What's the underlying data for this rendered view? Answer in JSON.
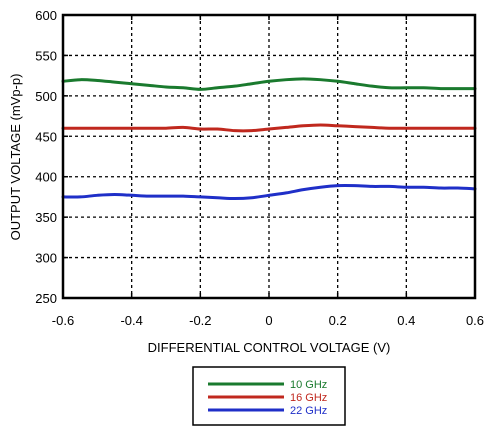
{
  "chart_data": {
    "type": "line",
    "title": "",
    "xlabel": "DIFFERENTIAL CONTROL VOLTAGE (V)",
    "ylabel": "OUTPUT VOLTAGE (mVp-p)",
    "xlim": [
      -0.6,
      0.6
    ],
    "ylim": [
      250,
      600
    ],
    "xticks": [
      -0.6,
      -0.4,
      -0.2,
      0,
      0.2,
      0.4,
      0.6
    ],
    "xtick_labels": [
      "-0.6",
      "-0.4",
      "-0.2",
      "0",
      "0.2",
      "0.4",
      "0.6"
    ],
    "yticks": [
      250,
      300,
      350,
      400,
      450,
      500,
      550,
      600
    ],
    "ytick_labels": [
      "250",
      "300",
      "350",
      "400",
      "450",
      "500",
      "550",
      "600"
    ],
    "grid": true,
    "legend_position": "bottom-center-outside",
    "series": [
      {
        "name": "10 GHz",
        "color": "#1a7a2e",
        "x": [
          -0.6,
          -0.55,
          -0.5,
          -0.45,
          -0.4,
          -0.35,
          -0.3,
          -0.25,
          -0.2,
          -0.15,
          -0.1,
          -0.05,
          0,
          0.05,
          0.1,
          0.15,
          0.2,
          0.25,
          0.3,
          0.35,
          0.4,
          0.45,
          0.5,
          0.55,
          0.6
        ],
        "values": [
          518,
          520,
          519,
          517,
          515,
          513,
          511,
          510,
          508,
          510,
          512,
          515,
          518,
          520,
          521,
          520,
          518,
          515,
          512,
          510,
          510,
          510,
          509,
          509,
          509
        ]
      },
      {
        "name": "16 GHz",
        "color": "#c0281e",
        "x": [
          -0.6,
          -0.55,
          -0.5,
          -0.45,
          -0.4,
          -0.35,
          -0.3,
          -0.25,
          -0.2,
          -0.15,
          -0.1,
          -0.05,
          0,
          0.05,
          0.1,
          0.15,
          0.2,
          0.25,
          0.3,
          0.35,
          0.4,
          0.45,
          0.5,
          0.55,
          0.6
        ],
        "values": [
          460,
          460,
          460,
          460,
          460,
          460,
          460,
          461,
          459,
          459,
          457,
          457,
          459,
          461,
          463,
          464,
          463,
          462,
          461,
          460,
          460,
          460,
          460,
          460,
          460
        ]
      },
      {
        "name": "22 GHz",
        "color": "#1f2fc8",
        "x": [
          -0.6,
          -0.55,
          -0.5,
          -0.45,
          -0.4,
          -0.35,
          -0.3,
          -0.25,
          -0.2,
          -0.15,
          -0.1,
          -0.05,
          0,
          0.05,
          0.1,
          0.15,
          0.2,
          0.25,
          0.3,
          0.35,
          0.4,
          0.45,
          0.5,
          0.55,
          0.6
        ],
        "values": [
          375,
          375,
          377,
          378,
          377,
          376,
          376,
          376,
          375,
          374,
          373,
          374,
          377,
          380,
          384,
          387,
          389,
          389,
          388,
          388,
          387,
          387,
          386,
          386,
          385
        ]
      }
    ]
  }
}
